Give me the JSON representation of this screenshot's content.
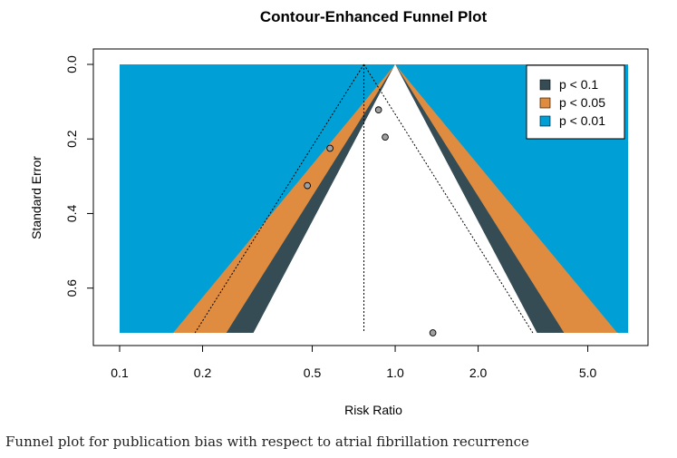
{
  "caption": "Funnel plot for publication bias with respect to atrial fibrillation recurrence",
  "chart_data": {
    "type": "scatter",
    "title": "Contour-Enhanced Funnel Plot",
    "xlabel": "Risk Ratio",
    "ylabel": "Standard Error",
    "x_scale": "log",
    "xlim": [
      0.1,
      7.0
    ],
    "ylim": [
      0.0,
      0.72
    ],
    "y_reversed": true,
    "x_ticks": [
      0.1,
      0.2,
      0.5,
      1.0,
      2.0,
      5.0
    ],
    "x_tick_labels": [
      "0.1",
      "0.2",
      "0.5",
      "1.0",
      "2.0",
      "5.0"
    ],
    "y_ticks": [
      0.0,
      0.2,
      0.4,
      0.6
    ],
    "y_tick_labels": [
      "0.0",
      "0.2",
      "0.4",
      "0.6"
    ],
    "reference_line_null": 1.0,
    "pooled_estimate": 0.77,
    "legend_position": "top-right",
    "contours": [
      {
        "label": "p < 0.1",
        "z": 1.645,
        "color": "#364c54"
      },
      {
        "label": "p < 0.05",
        "z": 1.96,
        "color": "#df8c40"
      },
      {
        "label": "p < 0.01",
        "z": 2.576,
        "color": "#00a0d6"
      }
    ],
    "points": [
      {
        "x": 0.48,
        "y": 0.325
      },
      {
        "x": 0.58,
        "y": 0.225
      },
      {
        "x": 0.87,
        "y": 0.122
      },
      {
        "x": 0.92,
        "y": 0.195
      },
      {
        "x": 1.37,
        "y": 0.72
      }
    ]
  }
}
